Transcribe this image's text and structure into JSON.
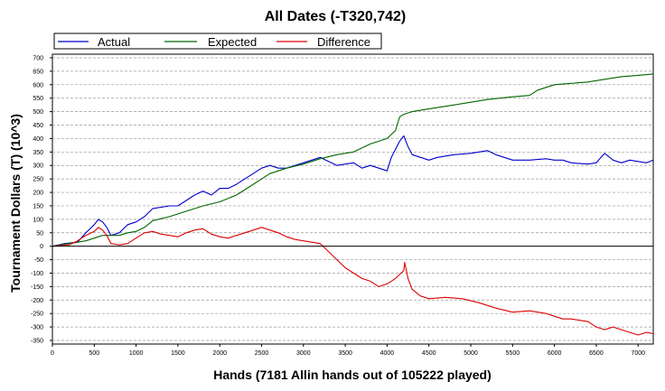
{
  "chart_data": {
    "type": "line",
    "title": "All Dates (-T320,742)",
    "xlabel": "Hands (7181 Allin hands out of 105222 played)",
    "ylabel": "Tournament Dollars (T) (10^3)",
    "xlim": [
      0,
      7181
    ],
    "ylim": [
      -350,
      700
    ],
    "x_ticks": [
      "0",
      "500",
      "1000",
      "1500",
      "2000",
      "2500",
      "3000",
      "3500",
      "4000",
      "4500",
      "5000",
      "5500",
      "6000",
      "6500",
      "7000"
    ],
    "y_ticks": [
      "-350",
      "-300",
      "-250",
      "-200",
      "-150",
      "-100",
      "-50",
      "0",
      "50",
      "100",
      "150",
      "200",
      "250",
      "300",
      "350",
      "400",
      "450",
      "500",
      "550",
      "600",
      "650",
      "700"
    ],
    "grid": "horizontal dashed",
    "legend_position": "top",
    "series": [
      {
        "name": "Actual",
        "color": "#0000cc",
        "x": [
          0,
          150,
          300,
          400,
          500,
          550,
          600,
          650,
          700,
          800,
          900,
          1000,
          1100,
          1200,
          1400,
          1500,
          1600,
          1700,
          1800,
          1900,
          2000,
          2100,
          2200,
          2300,
          2400,
          2500,
          2600,
          2700,
          2800,
          3000,
          3100,
          3200,
          3300,
          3400,
          3500,
          3600,
          3700,
          3800,
          3900,
          4000,
          4050,
          4100,
          4150,
          4200,
          4250,
          4300,
          4400,
          4500,
          4600,
          4800,
          5000,
          5200,
          5300,
          5500,
          5700,
          5900,
          6000,
          6100,
          6200,
          6400,
          6500,
          6600,
          6700,
          6800,
          6900,
          7000,
          7100,
          7181
        ],
        "y": [
          0,
          10,
          15,
          50,
          80,
          100,
          90,
          70,
          40,
          50,
          80,
          90,
          110,
          140,
          150,
          150,
          170,
          190,
          205,
          190,
          215,
          215,
          230,
          250,
          270,
          290,
          300,
          290,
          290,
          310,
          320,
          330,
          315,
          300,
          305,
          310,
          290,
          300,
          290,
          280,
          330,
          360,
          390,
          410,
          370,
          340,
          330,
          320,
          330,
          340,
          345,
          355,
          340,
          320,
          320,
          325,
          320,
          320,
          310,
          305,
          310,
          345,
          320,
          310,
          320,
          315,
          310,
          320
        ]
      },
      {
        "name": "Expected",
        "color": "#006600",
        "x": [
          0,
          200,
          400,
          500,
          600,
          700,
          800,
          900,
          1000,
          1100,
          1200,
          1400,
          1500,
          1600,
          1800,
          2000,
          2200,
          2400,
          2600,
          2800,
          3000,
          3200,
          3400,
          3600,
          3800,
          4000,
          4100,
          4150,
          4200,
          4300,
          4500,
          4700,
          5000,
          5200,
          5500,
          5700,
          5800,
          6000,
          6200,
          6400,
          6600,
          6800,
          7000,
          7181
        ],
        "y": [
          0,
          10,
          20,
          30,
          40,
          40,
          40,
          50,
          55,
          70,
          95,
          110,
          120,
          130,
          150,
          165,
          190,
          230,
          270,
          290,
          305,
          325,
          340,
          350,
          380,
          400,
          430,
          480,
          490,
          500,
          510,
          520,
          535,
          545,
          555,
          560,
          580,
          600,
          605,
          610,
          620,
          630,
          635,
          640
        ]
      },
      {
        "name": "Difference",
        "color": "#dd0000",
        "x": [
          0,
          200,
          300,
          400,
          500,
          550,
          600,
          650,
          700,
          800,
          900,
          1000,
          1100,
          1200,
          1300,
          1400,
          1500,
          1600,
          1700,
          1800,
          1900,
          2000,
          2100,
          2200,
          2300,
          2400,
          2500,
          2600,
          2700,
          2800,
          2900,
          3000,
          3100,
          3200,
          3300,
          3400,
          3500,
          3600,
          3700,
          3800,
          3900,
          4000,
          4100,
          4200,
          4210,
          4250,
          4300,
          4400,
          4500,
          4700,
          4900,
          5100,
          5300,
          5500,
          5700,
          5900,
          6000,
          6100,
          6200,
          6400,
          6500,
          6600,
          6700,
          6800,
          6900,
          7000,
          7100,
          7181
        ],
        "y": [
          0,
          5,
          20,
          40,
          55,
          70,
          60,
          40,
          10,
          5,
          10,
          30,
          50,
          55,
          45,
          40,
          35,
          50,
          60,
          65,
          45,
          35,
          30,
          40,
          50,
          60,
          70,
          60,
          50,
          35,
          25,
          20,
          15,
          10,
          -20,
          -50,
          -80,
          -100,
          -120,
          -130,
          -150,
          -140,
          -120,
          -90,
          -60,
          -120,
          -160,
          -185,
          -195,
          -190,
          -195,
          -210,
          -230,
          -245,
          -240,
          -250,
          -260,
          -270,
          -270,
          -280,
          -300,
          -310,
          -300,
          -310,
          -320,
          -330,
          -320,
          -325
        ]
      }
    ]
  }
}
